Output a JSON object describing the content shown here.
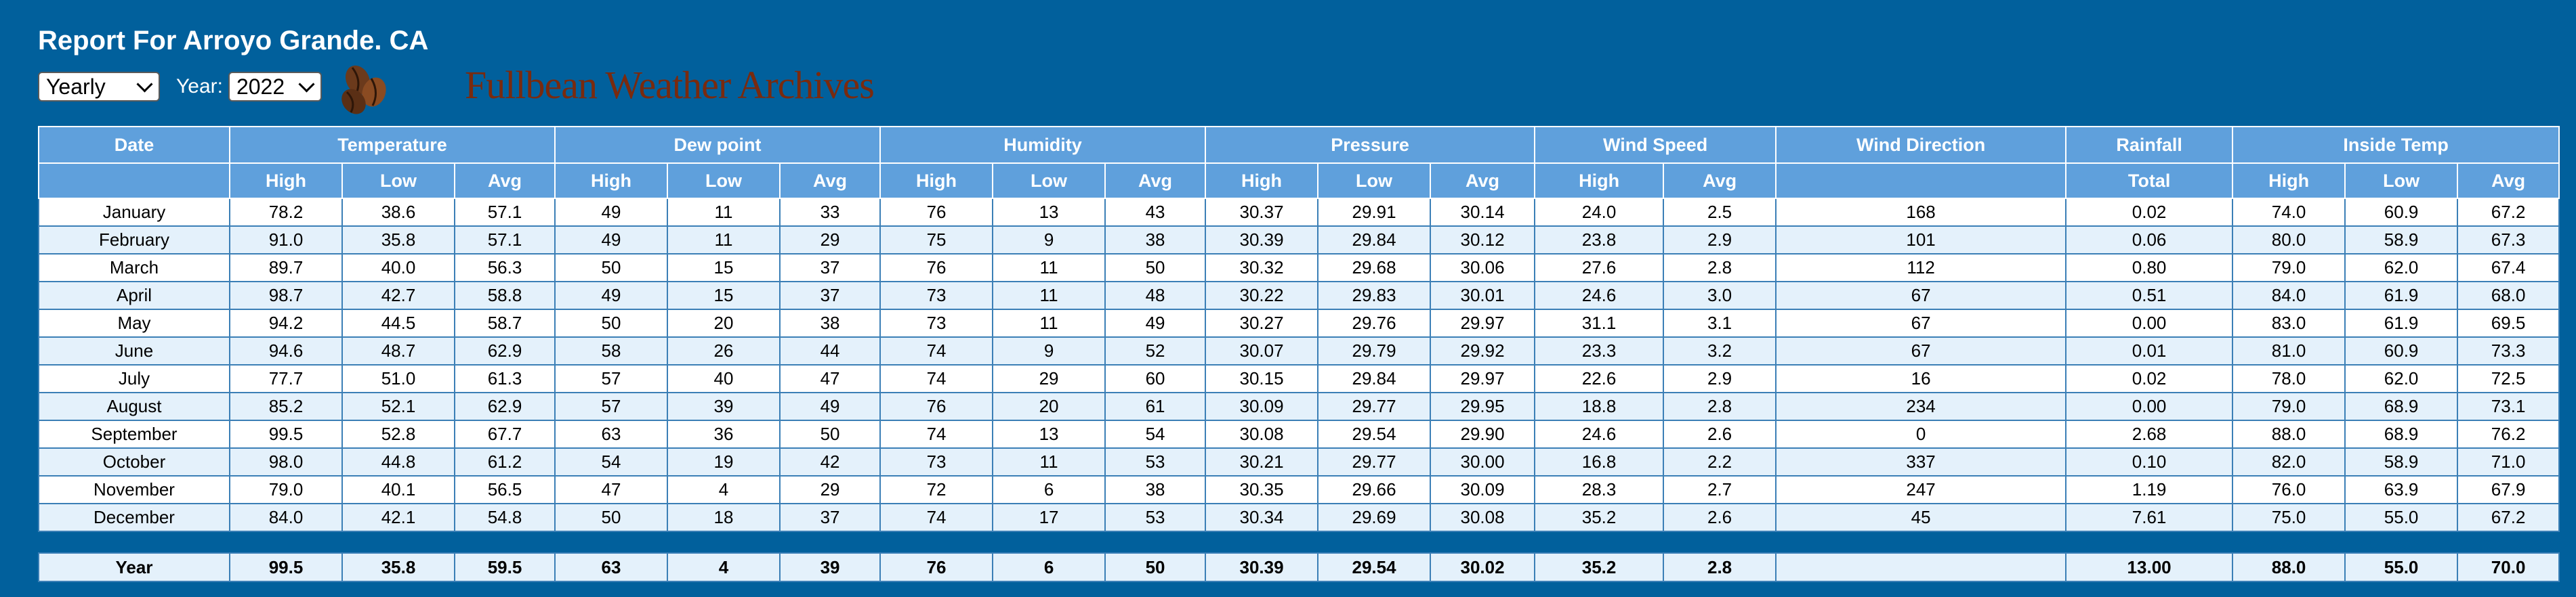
{
  "report": {
    "title": "Report For Arroyo Grande. CA",
    "period": "Yearly",
    "year_label": "Year:",
    "year": "2022",
    "brand": "Fullbean Weather Archives"
  },
  "colors": {
    "background": "#01609c",
    "header": "#5fa0dc",
    "row_alt": "#e4f1fb",
    "brand": "#7a2a0e"
  },
  "icons": {
    "logo": "coffee-beans-icon",
    "dropdown": "chevron-down-icon"
  },
  "table": {
    "groups": [
      {
        "label": "Date",
        "span": 1
      },
      {
        "label": "Temperature",
        "span": 3
      },
      {
        "label": "Dew point",
        "span": 3
      },
      {
        "label": "Humidity",
        "span": 3
      },
      {
        "label": "Pressure",
        "span": 3
      },
      {
        "label": "Wind Speed",
        "span": 2
      },
      {
        "label": "Wind Direction",
        "span": 1
      },
      {
        "label": "Rainfall",
        "span": 1
      },
      {
        "label": "Inside Temp",
        "span": 3
      }
    ],
    "subheaders": [
      "",
      "High",
      "Low",
      "Avg",
      "High",
      "Low",
      "Avg",
      "High",
      "Low",
      "Avg",
      "High",
      "Low",
      "Avg",
      "High",
      "Avg",
      "",
      "Total",
      "High",
      "Low",
      "Avg"
    ],
    "rows": [
      [
        "January",
        "78.2",
        "38.6",
        "57.1",
        "49",
        "11",
        "33",
        "76",
        "13",
        "43",
        "30.37",
        "29.91",
        "30.14",
        "24.0",
        "2.5",
        "168",
        "0.02",
        "74.0",
        "60.9",
        "67.2"
      ],
      [
        "February",
        "91.0",
        "35.8",
        "57.1",
        "49",
        "11",
        "29",
        "75",
        "9",
        "38",
        "30.39",
        "29.84",
        "30.12",
        "23.8",
        "2.9",
        "101",
        "0.06",
        "80.0",
        "58.9",
        "67.3"
      ],
      [
        "March",
        "89.7",
        "40.0",
        "56.3",
        "50",
        "15",
        "37",
        "76",
        "11",
        "50",
        "30.32",
        "29.68",
        "30.06",
        "27.6",
        "2.8",
        "112",
        "0.80",
        "79.0",
        "62.0",
        "67.4"
      ],
      [
        "April",
        "98.7",
        "42.7",
        "58.8",
        "49",
        "15",
        "37",
        "73",
        "11",
        "48",
        "30.22",
        "29.83",
        "30.01",
        "24.6",
        "3.0",
        "67",
        "0.51",
        "84.0",
        "61.9",
        "68.0"
      ],
      [
        "May",
        "94.2",
        "44.5",
        "58.7",
        "50",
        "20",
        "38",
        "73",
        "11",
        "49",
        "30.27",
        "29.76",
        "29.97",
        "31.1",
        "3.1",
        "67",
        "0.00",
        "83.0",
        "61.9",
        "69.5"
      ],
      [
        "June",
        "94.6",
        "48.7",
        "62.9",
        "58",
        "26",
        "44",
        "74",
        "9",
        "52",
        "30.07",
        "29.79",
        "29.92",
        "23.3",
        "3.2",
        "67",
        "0.01",
        "81.0",
        "60.9",
        "73.3"
      ],
      [
        "July",
        "77.7",
        "51.0",
        "61.3",
        "57",
        "40",
        "47",
        "74",
        "29",
        "60",
        "30.15",
        "29.84",
        "29.97",
        "22.6",
        "2.9",
        "16",
        "0.02",
        "78.0",
        "62.0",
        "72.5"
      ],
      [
        "August",
        "85.2",
        "52.1",
        "62.9",
        "57",
        "39",
        "49",
        "76",
        "20",
        "61",
        "30.09",
        "29.77",
        "29.95",
        "18.8",
        "2.8",
        "234",
        "0.00",
        "79.0",
        "68.9",
        "73.1"
      ],
      [
        "September",
        "99.5",
        "52.8",
        "67.7",
        "63",
        "36",
        "50",
        "74",
        "13",
        "54",
        "30.08",
        "29.54",
        "29.90",
        "24.6",
        "2.6",
        "0",
        "2.68",
        "88.0",
        "68.9",
        "76.2"
      ],
      [
        "October",
        "98.0",
        "44.8",
        "61.2",
        "54",
        "19",
        "42",
        "73",
        "11",
        "53",
        "30.21",
        "29.77",
        "30.00",
        "16.8",
        "2.2",
        "337",
        "0.10",
        "82.0",
        "58.9",
        "71.0"
      ],
      [
        "November",
        "79.0",
        "40.1",
        "56.5",
        "47",
        "4",
        "29",
        "72",
        "6",
        "38",
        "30.35",
        "29.66",
        "30.09",
        "28.3",
        "2.7",
        "247",
        "1.19",
        "76.0",
        "63.9",
        "67.9"
      ],
      [
        "December",
        "84.0",
        "42.1",
        "54.8",
        "50",
        "18",
        "37",
        "74",
        "17",
        "53",
        "30.34",
        "29.69",
        "30.08",
        "35.2",
        "2.6",
        "45",
        "7.61",
        "75.0",
        "55.0",
        "67.2"
      ]
    ],
    "total": [
      "Year",
      "99.5",
      "35.8",
      "59.5",
      "63",
      "4",
      "39",
      "76",
      "6",
      "50",
      "30.39",
      "29.54",
      "30.02",
      "35.2",
      "2.8",
      "",
      "13.00",
      "88.0",
      "55.0",
      "70.0"
    ]
  }
}
